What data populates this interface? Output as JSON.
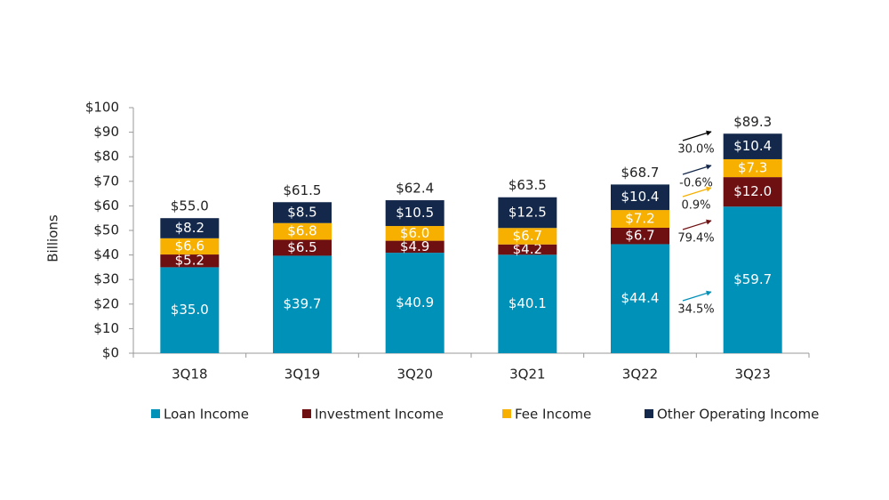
{
  "chart_data": {
    "type": "stacked-bar",
    "y_label": "Billions",
    "categories": [
      "3Q18",
      "3Q19",
      "3Q20",
      "3Q21",
      "3Q22",
      "3Q23"
    ],
    "series": [
      {
        "name": "Loan Income",
        "color": "#0091b9",
        "values": [
          35.0,
          39.7,
          40.9,
          40.1,
          44.4,
          59.7
        ],
        "value_labels": [
          "$35.0",
          "$39.7",
          "$40.9",
          "$40.1",
          "$44.4",
          "$59.7"
        ]
      },
      {
        "name": "Investment Income",
        "color": "#6e0f12",
        "values": [
          5.2,
          6.5,
          4.9,
          4.2,
          6.7,
          12.0
        ],
        "value_labels": [
          "$5.2",
          "$6.5",
          "$4.9",
          "$4.2",
          "$6.7",
          "$12.0"
        ]
      },
      {
        "name": "Fee Income",
        "color": "#f7b000",
        "values": [
          6.6,
          6.8,
          6.0,
          6.7,
          7.2,
          7.3
        ],
        "value_labels": [
          "$6.6",
          "$6.8",
          "$6.0",
          "$6.7",
          "$7.2",
          "$7.3"
        ]
      },
      {
        "name": "Other Operating Income",
        "color": "#13284a",
        "values": [
          8.2,
          8.5,
          10.5,
          12.5,
          10.4,
          10.4
        ],
        "value_labels": [
          "$8.2",
          "$8.5",
          "$10.5",
          "$12.5",
          "$10.4",
          "$10.4"
        ]
      }
    ],
    "totals": [
      55.0,
      61.5,
      62.4,
      63.5,
      68.7,
      89.3
    ],
    "total_labels": [
      "$55.0",
      "$61.5",
      "$62.4",
      "$63.5",
      "$68.7",
      "$89.3"
    ],
    "annotations": [
      {
        "text": "34.5%",
        "color": "#0091b9"
      },
      {
        "text": "79.4%",
        "color": "#6e0f12"
      },
      {
        "text": "0.9%",
        "color": "#f7b000"
      },
      {
        "text": "-0.6%",
        "color": "#13284a"
      },
      {
        "text": "30.0%",
        "color": "#000000"
      }
    ],
    "ylim": [
      0,
      100
    ],
    "yticks": [
      {
        "value": 0,
        "label": "$0"
      },
      {
        "value": 10,
        "label": "$10"
      },
      {
        "value": 20,
        "label": "$20"
      },
      {
        "value": 30,
        "label": "$30"
      },
      {
        "value": 40,
        "label": "$40"
      },
      {
        "value": 50,
        "label": "$50"
      },
      {
        "value": 60,
        "label": "$60"
      },
      {
        "value": 70,
        "label": "$70"
      },
      {
        "value": 80,
        "label": "$80"
      },
      {
        "value": 90,
        "label": "$90"
      },
      {
        "value": 100,
        "label": "$100"
      }
    ]
  }
}
